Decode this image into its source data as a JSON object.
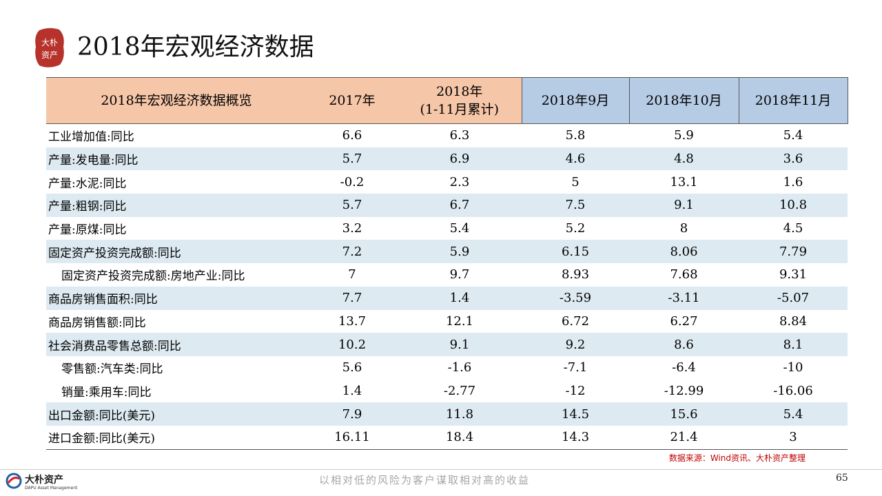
{
  "page": {
    "title": "2018年宏观经济数据",
    "seal_text": "大朴资产"
  },
  "table": {
    "headers": [
      "2018年宏观经济数据概览",
      "2017年",
      "2018年",
      "(1-11月累计)",
      "2018年9月",
      "2018年10月",
      "2018年11月"
    ],
    "rows": [
      {
        "label": "工业增加值:同比",
        "indent": false,
        "shade": false,
        "values": [
          "6.6",
          "6.3",
          "5.8",
          "5.9",
          "5.4"
        ]
      },
      {
        "label": "产量:发电量:同比",
        "indent": false,
        "shade": true,
        "values": [
          "5.7",
          "6.9",
          "4.6",
          "4.8",
          "3.6"
        ]
      },
      {
        "label": "产量:水泥:同比",
        "indent": false,
        "shade": false,
        "values": [
          "-0.2",
          "2.3",
          "5",
          "13.1",
          "1.6"
        ]
      },
      {
        "label": "产量:粗钢:同比",
        "indent": false,
        "shade": true,
        "values": [
          "5.7",
          "6.7",
          "7.5",
          "9.1",
          "10.8"
        ]
      },
      {
        "label": "产量:原煤:同比",
        "indent": false,
        "shade": false,
        "values": [
          "3.2",
          "5.4",
          "5.2",
          "8",
          "4.5"
        ]
      },
      {
        "label": "固定资产投资完成额:同比",
        "indent": false,
        "shade": true,
        "values": [
          "7.2",
          "5.9",
          "6.15",
          "8.06",
          "7.79"
        ]
      },
      {
        "label": "固定资产投资完成额:房地产业:同比",
        "indent": true,
        "shade": false,
        "values": [
          "7",
          "9.7",
          "8.93",
          "7.68",
          "9.31"
        ]
      },
      {
        "label": "商品房销售面积:同比",
        "indent": false,
        "shade": true,
        "values": [
          "7.7",
          "1.4",
          "-3.59",
          "-3.11",
          "-5.07"
        ]
      },
      {
        "label": "商品房销售额:同比",
        "indent": false,
        "shade": false,
        "values": [
          "13.7",
          "12.1",
          "6.72",
          "6.27",
          "8.84"
        ]
      },
      {
        "label": "社会消费品零售总额:同比",
        "indent": false,
        "shade": true,
        "values": [
          "10.2",
          "9.1",
          "9.2",
          "8.6",
          "8.1"
        ]
      },
      {
        "label": "零售额:汽车类:同比",
        "indent": true,
        "shade": false,
        "values": [
          "5.6",
          "-1.6",
          "-7.1",
          "-6.4",
          "-10"
        ]
      },
      {
        "label": "销量:乘用车:同比",
        "indent": true,
        "shade": false,
        "values": [
          "1.4",
          "-2.77",
          "-12",
          "-12.99",
          "-16.06"
        ]
      },
      {
        "label": "出口金额:同比(美元)",
        "indent": false,
        "shade": true,
        "values": [
          "7.9",
          "11.8",
          "14.5",
          "15.6",
          "5.4"
        ]
      },
      {
        "label": "进口金额:同比(美元)",
        "indent": false,
        "shade": false,
        "values": [
          "16.11",
          "18.4",
          "14.3",
          "21.4",
          "3"
        ]
      }
    ]
  },
  "source_note": "数据来源：Wind资讯、大朴资产整理",
  "footer": {
    "brand_name": "大朴资产",
    "brand_sub": "DAPU Asset Management",
    "slogan": "以相对低的风险为客户谋取相对高的收益",
    "page_number": "65"
  },
  "colors": {
    "header_peach": "#f6c6a8",
    "header_blue": "#b6cbe4",
    "row_shade": "#ddeaf1",
    "seal_red": "#b8322c",
    "source_red": "#c00000"
  }
}
